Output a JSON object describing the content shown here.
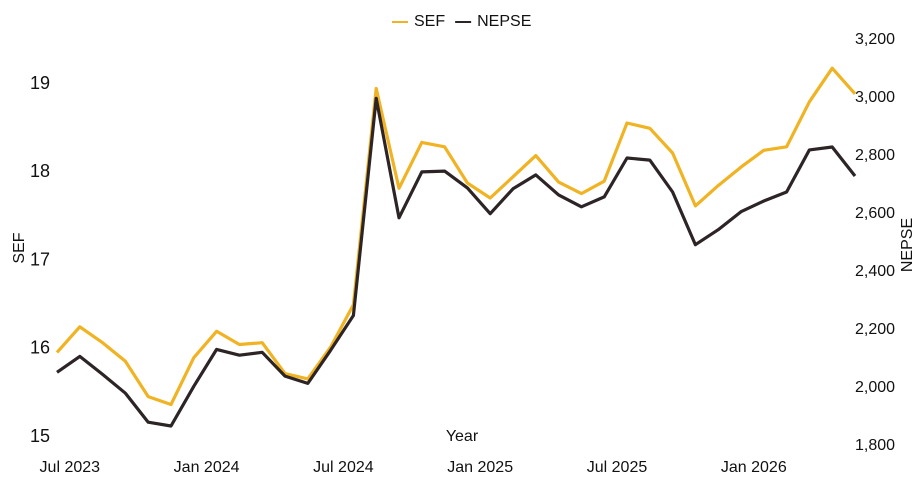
{
  "chart_data": {
    "type": "line",
    "x": [
      "2023-06",
      "2023-07",
      "2023-08",
      "2023-09",
      "2023-10",
      "2023-11",
      "2023-12",
      "2024-01",
      "2024-02",
      "2024-03",
      "2024-04",
      "2024-05",
      "2024-06",
      "2024-07",
      "2024-08",
      "2024-09",
      "2024-10",
      "2024-11",
      "2024-12",
      "2025-01",
      "2025-02",
      "2025-03",
      "2025-04",
      "2025-05",
      "2025-06",
      "2025-07",
      "2025-08",
      "2025-09",
      "2025-10",
      "2025-11",
      "2025-12",
      "2026-01",
      "2026-02",
      "2026-03",
      "2026-04",
      "2026-05"
    ],
    "series": [
      {
        "name": "SEF",
        "color": "#f0b323",
        "values": [
          15.96,
          16.25,
          16.07,
          15.86,
          15.46,
          15.37,
          15.9,
          16.2,
          16.05,
          16.07,
          15.72,
          15.66,
          16.02,
          16.5,
          18.95,
          17.82,
          18.34,
          18.29,
          17.88,
          17.71,
          17.95,
          18.19,
          17.89,
          17.76,
          17.9,
          18.56,
          18.5,
          18.22,
          17.62,
          17.85,
          18.06,
          18.25,
          18.29,
          18.8,
          19.18,
          18.89
        ]
      },
      {
        "name": "NEPSE",
        "color": "#2d2426",
        "axis": "y2",
        "values": [
          2054,
          2109,
          2047,
          1982,
          1882,
          1869,
          2006,
          2133,
          2113,
          2123,
          2041,
          2016,
          2130,
          2250,
          2999,
          2587,
          2745,
          2748,
          2690,
          2601,
          2687,
          2735,
          2666,
          2625,
          2659,
          2793,
          2786,
          2676,
          2494,
          2546,
          2608,
          2645,
          2676,
          2821,
          2831,
          2731
        ]
      }
    ],
    "xlabel": "Year",
    "ylabel": "SEF",
    "y2label": "NEPSE",
    "xticks": [
      {
        "value": "2023-07",
        "label": "Jul 2023"
      },
      {
        "value": "2024-01",
        "label": "Jan 2024"
      },
      {
        "value": "2024-07",
        "label": "Jul 2024"
      },
      {
        "value": "2025-01",
        "label": "Jan 2025"
      },
      {
        "value": "2025-07",
        "label": "Jul 2025"
      },
      {
        "value": "2026-01",
        "label": "Jan 2026"
      }
    ],
    "ylim": [
      14.9,
      19.5
    ],
    "yticks": [
      15,
      16,
      17,
      18,
      19
    ],
    "y2lim": [
      1800,
      3200
    ],
    "y2ticks": [
      {
        "value": 1800,
        "label": "1,800"
      },
      {
        "value": 2000,
        "label": "2,000"
      },
      {
        "value": 2200,
        "label": "2,200"
      },
      {
        "value": 2400,
        "label": "2,400"
      },
      {
        "value": 2600,
        "label": "2,600"
      },
      {
        "value": 2800,
        "label": "2,800"
      },
      {
        "value": 3000,
        "label": "3,000"
      },
      {
        "value": 3200,
        "label": "3,200"
      }
    ],
    "legend": "top",
    "grid": false
  }
}
